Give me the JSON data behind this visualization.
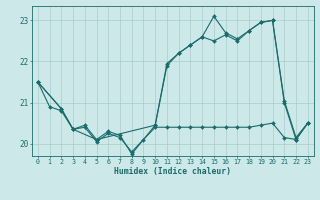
{
  "title": "",
  "xlabel": "Humidex (Indice chaleur)",
  "bg_color": "#cce8e8",
  "grid_color": "#aacccc",
  "line_color": "#1a6b6b",
  "xlim": [
    -0.5,
    23.5
  ],
  "ylim": [
    19.7,
    23.35
  ],
  "yticks": [
    20,
    21,
    22,
    23
  ],
  "xticks": [
    0,
    1,
    2,
    3,
    4,
    5,
    6,
    7,
    8,
    9,
    10,
    11,
    12,
    13,
    14,
    15,
    16,
    17,
    18,
    19,
    20,
    21,
    22,
    23
  ],
  "line_min_x": [
    0,
    1,
    2,
    3,
    4,
    5,
    6,
    7,
    8,
    9,
    10,
    11,
    12,
    13,
    14,
    15,
    16,
    17,
    18,
    19,
    20,
    21,
    22,
    23
  ],
  "line_min_y": [
    21.5,
    20.9,
    20.8,
    20.35,
    20.4,
    20.05,
    20.25,
    20.15,
    19.8,
    20.1,
    20.4,
    20.4,
    20.4,
    20.4,
    20.4,
    20.4,
    20.4,
    20.4,
    20.4,
    20.45,
    20.5,
    20.15,
    20.1,
    20.5
  ],
  "line_main_x": [
    0,
    2,
    3,
    4,
    5,
    6,
    7,
    8,
    10,
    11,
    12,
    13,
    14,
    15,
    16,
    17,
    18,
    19,
    20,
    21,
    22,
    23
  ],
  "line_main_y": [
    21.5,
    20.85,
    20.35,
    20.45,
    20.1,
    20.3,
    20.2,
    19.75,
    20.45,
    21.9,
    22.2,
    22.4,
    22.6,
    23.1,
    22.7,
    22.55,
    22.75,
    22.95,
    23.0,
    21.05,
    20.15,
    20.5
  ],
  "line_max_x": [
    0,
    2,
    3,
    5,
    10,
    11,
    12,
    13,
    14,
    15,
    16,
    17,
    18,
    19,
    20,
    21,
    22,
    23
  ],
  "line_max_y": [
    21.5,
    20.85,
    20.35,
    20.1,
    20.45,
    21.95,
    22.2,
    22.4,
    22.6,
    22.5,
    22.65,
    22.5,
    22.75,
    22.95,
    23.0,
    21.0,
    20.1,
    20.5
  ]
}
